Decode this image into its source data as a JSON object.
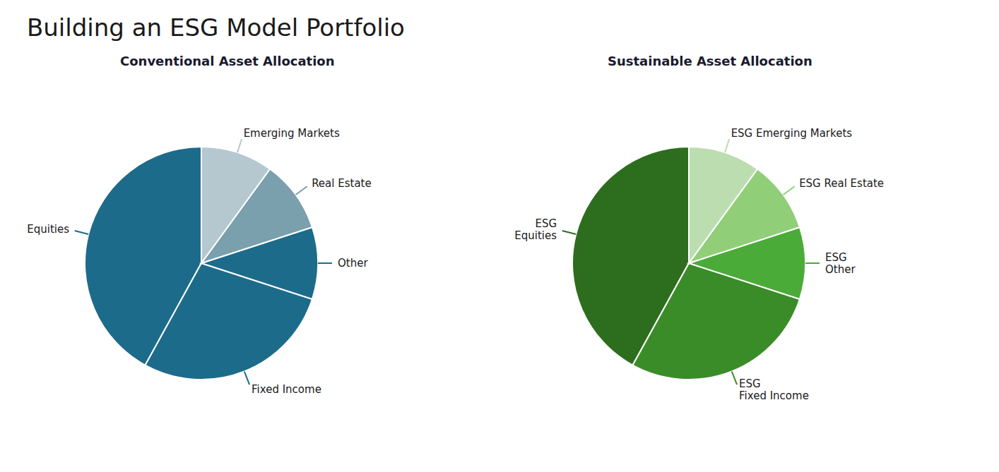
{
  "title": "Building an ESG Model Portfolio",
  "chart_data": [
    {
      "type": "pie",
      "title": "Conventional Asset Allocation",
      "categories": [
        "Equities",
        "Fixed Income",
        "Other",
        "Real Estate",
        "Emerging Markets"
      ],
      "values": [
        42,
        28,
        10,
        10,
        10
      ],
      "colors": [
        "#1d6b8a",
        "#1d6b8a",
        "#1d6b8a",
        "#7a9fad",
        "#b5c8cf"
      ]
    },
    {
      "type": "pie",
      "title": "Sustainable Asset Allocation",
      "categories": [
        "ESG\nEquities",
        "ESG\nFixed Income",
        "ESG\nOther",
        "ESG Real Estate",
        "ESG Emerging Markets"
      ],
      "values": [
        42,
        28,
        10,
        10,
        10
      ],
      "colors": [
        "#2d6e1e",
        "#3a8c28",
        "#4aab38",
        "#90ce78",
        "#bcddb0"
      ]
    }
  ]
}
